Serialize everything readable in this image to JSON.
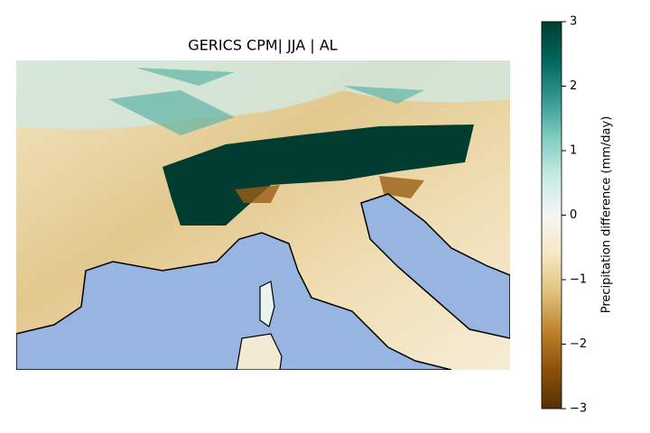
{
  "title": "GERICS CPM| JJA | AL",
  "colorbar": {
    "label": "Precipitation difference (mm/day)",
    "lim": [
      -3,
      3
    ],
    "ticks": [
      {
        "value": -3,
        "label": "−3"
      },
      {
        "value": -2,
        "label": "−2"
      },
      {
        "value": -1,
        "label": "−1"
      },
      0,
      1,
      2,
      3
    ]
  }
}
